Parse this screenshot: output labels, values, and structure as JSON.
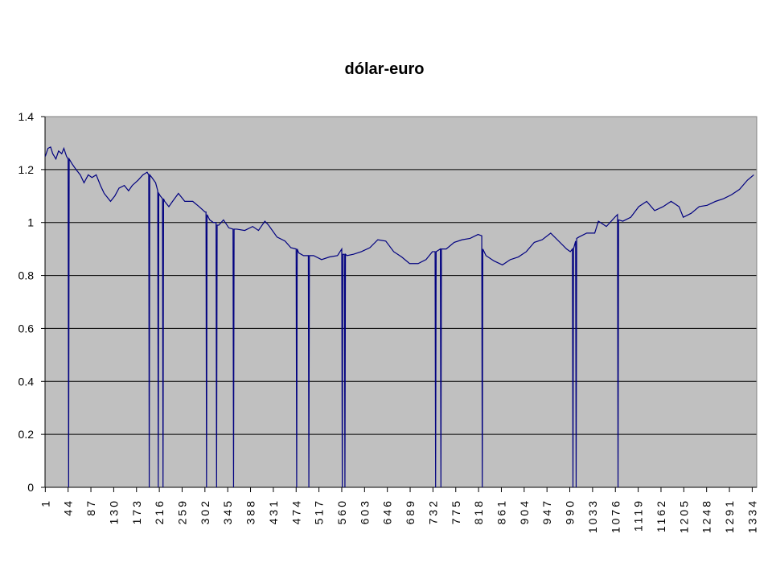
{
  "chart_data": {
    "type": "line",
    "title": "dólar-euro",
    "x": [
      1,
      6,
      11,
      15,
      21,
      26,
      32,
      36,
      41,
      44,
      45,
      46,
      52,
      59,
      67,
      74,
      82,
      89,
      97,
      105,
      112,
      124,
      132,
      140,
      150,
      158,
      165,
      176,
      185,
      193,
      196,
      197,
      198,
      202,
      209,
      213,
      214,
      215,
      218,
      222,
      223,
      224,
      226,
      234,
      241,
      252,
      264,
      279,
      291,
      302,
      304,
      305,
      306,
      311,
      318,
      323,
      324,
      325,
      328,
      337,
      347,
      355,
      356,
      357,
      362,
      377,
      392,
      403,
      415,
      422,
      438,
      453,
      464,
      474,
      475,
      476,
      479,
      488,
      497,
      498,
      499,
      507,
      522,
      537,
      552,
      560,
      561,
      562,
      565,
      566,
      567,
      570,
      582,
      597,
      613,
      628,
      643,
      658,
      673,
      688,
      704,
      719,
      731,
      736,
      737,
      738,
      746,
      747,
      748,
      757,
      772,
      787,
      802,
      817,
      824,
      825,
      826,
      832,
      847,
      863,
      878,
      893,
      908,
      923,
      938,
      954,
      969,
      984,
      991,
      995,
      996,
      997,
      1001,
      1002,
      1003,
      1007,
      1022,
      1037,
      1044,
      1059,
      1075,
      1080,
      1081,
      1082,
      1090,
      1105,
      1120,
      1135,
      1150,
      1166,
      1181,
      1196,
      1204,
      1219,
      1234,
      1249,
      1265,
      1280,
      1295,
      1310,
      1325,
      1337
    ],
    "series": [
      {
        "name": "dólar-euro",
        "color": "#000080",
        "values": [
          1.25,
          1.28,
          1.285,
          1.26,
          1.24,
          1.27,
          1.26,
          1.28,
          1.25,
          1.24,
          0,
          1.24,
          1.22,
          1.2,
          1.18,
          1.15,
          1.18,
          1.17,
          1.18,
          1.14,
          1.11,
          1.08,
          1.1,
          1.13,
          1.14,
          1.12,
          1.14,
          1.16,
          1.18,
          1.19,
          1.18,
          0,
          1.18,
          1.17,
          1.15,
          1.12,
          0,
          1.11,
          1.1,
          1.09,
          0,
          1.09,
          1.08,
          1.06,
          1.08,
          1.11,
          1.08,
          1.08,
          1.06,
          1.04,
          1.04,
          0,
          1.03,
          1.01,
          1.0,
          1.0,
          0,
          0.99,
          0.99,
          1.01,
          0.98,
          0.975,
          0,
          0.975,
          0.975,
          0.97,
          0.985,
          0.97,
          1.005,
          0.99,
          0.945,
          0.93,
          0.905,
          0.9,
          0,
          0.9,
          0.885,
          0.875,
          0.875,
          0,
          0.875,
          0.875,
          0.86,
          0.87,
          0.875,
          0.9,
          0,
          0.88,
          0.88,
          0,
          0.88,
          0.875,
          0.88,
          0.89,
          0.905,
          0.935,
          0.93,
          0.89,
          0.87,
          0.845,
          0.845,
          0.86,
          0.89,
          0.89,
          0,
          0.89,
          0.9,
          0,
          0.9,
          0.9,
          0.925,
          0.935,
          0.94,
          0.955,
          0.95,
          0,
          0.9,
          0.875,
          0.855,
          0.84,
          0.86,
          0.87,
          0.89,
          0.925,
          0.935,
          0.96,
          0.93,
          0.9,
          0.89,
          0.9,
          0,
          0.9,
          0.93,
          0,
          0.94,
          0.945,
          0.96,
          0.96,
          1.005,
          0.985,
          1.02,
          1.03,
          0,
          1.01,
          1.005,
          1.02,
          1.06,
          1.08,
          1.045,
          1.06,
          1.08,
          1.06,
          1.02,
          1.035,
          1.06,
          1.065,
          1.08,
          1.09,
          1.105,
          1.125,
          1.16,
          1.18
        ]
      }
    ],
    "xlim": [
      0.5,
      1342.5
    ],
    "xticks": [
      1,
      44,
      87,
      130,
      173,
      216,
      259,
      302,
      345,
      388,
      431,
      474,
      517,
      560,
      603,
      646,
      689,
      732,
      775,
      818,
      861,
      904,
      947,
      990,
      1033,
      1076,
      1119,
      1162,
      1205,
      1248,
      1291,
      1334
    ],
    "ylim": [
      0,
      1.4
    ],
    "yticks": [
      0,
      0.2,
      0.4,
      0.6,
      0.8,
      1,
      1.2,
      1.4
    ],
    "grid": true,
    "background": "#c0c0c0"
  }
}
